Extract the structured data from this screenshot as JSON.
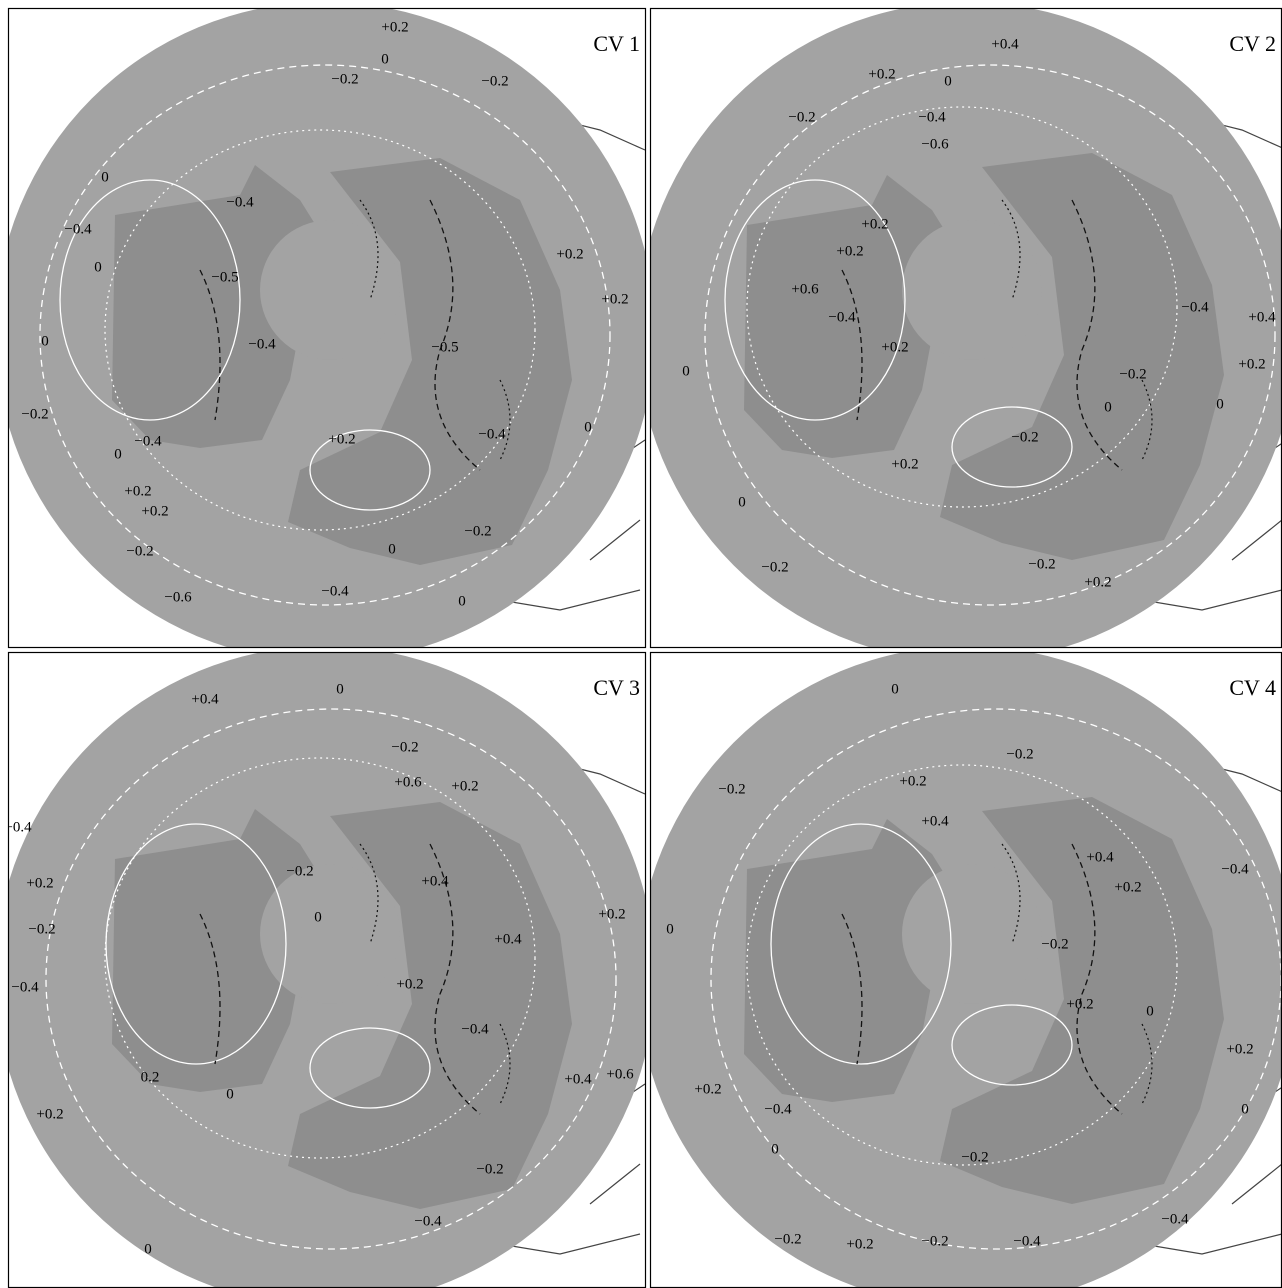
{
  "panels": [
    {
      "title": "CV 1",
      "labels": [
        "+0.2",
        "0",
        "−0.2",
        "−0.2",
        "0",
        "−0.4",
        "−0.4",
        "0",
        "−0.5",
        "0",
        "−0.4",
        "−0.5",
        "+0.2",
        "−0.4",
        "−0.4",
        "0",
        "+0.2",
        "+0.2",
        "−0.2",
        "0",
        "−0.2",
        "−0.6",
        "−0.4",
        "0",
        "+0.2",
        "+0.2",
        "0",
        "−0.2"
      ]
    },
    {
      "title": "CV 2",
      "labels": [
        "+0.4",
        "+0.2",
        "0",
        "−0.2",
        "−0.4",
        "−0.6",
        "+0.2",
        "+0.2",
        "+0.6",
        "−0.4",
        "+0.2",
        "0",
        "+0.2",
        "0",
        "−0.2",
        "−0.2",
        "+0.2",
        "−0.4",
        "−0.2",
        "0",
        "+0.4",
        "+0.2",
        "−0.2",
        "0"
      ]
    },
    {
      "title": "CV 3",
      "labels": [
        "+0.4",
        "0",
        "−0.2",
        "+0.6",
        "+0.2",
        "+0.4",
        "+0.4",
        "0",
        "−0.2",
        "+0.2",
        "−0.2",
        "−0.4",
        "+0.4",
        "0.2",
        "+0.2",
        "0",
        "+0.2",
        "−0.4",
        "+0.4",
        "+0.6",
        "+0.2",
        "−0.2",
        "0",
        "−0.4"
      ]
    },
    {
      "title": "CV 4",
      "labels": [
        "0",
        "−0.2",
        "−0.2",
        "+0.2",
        "+0.4",
        "+0.4",
        "+0.2",
        "−0.4",
        "0",
        "−0.2",
        "+0.2",
        "−0.4",
        "+0.2",
        "0",
        "+0.2",
        "−0.2",
        "−0.2",
        "−0.4",
        "−0.2",
        "−0.4",
        "0",
        "+0.2",
        "0"
      ]
    }
  ]
}
